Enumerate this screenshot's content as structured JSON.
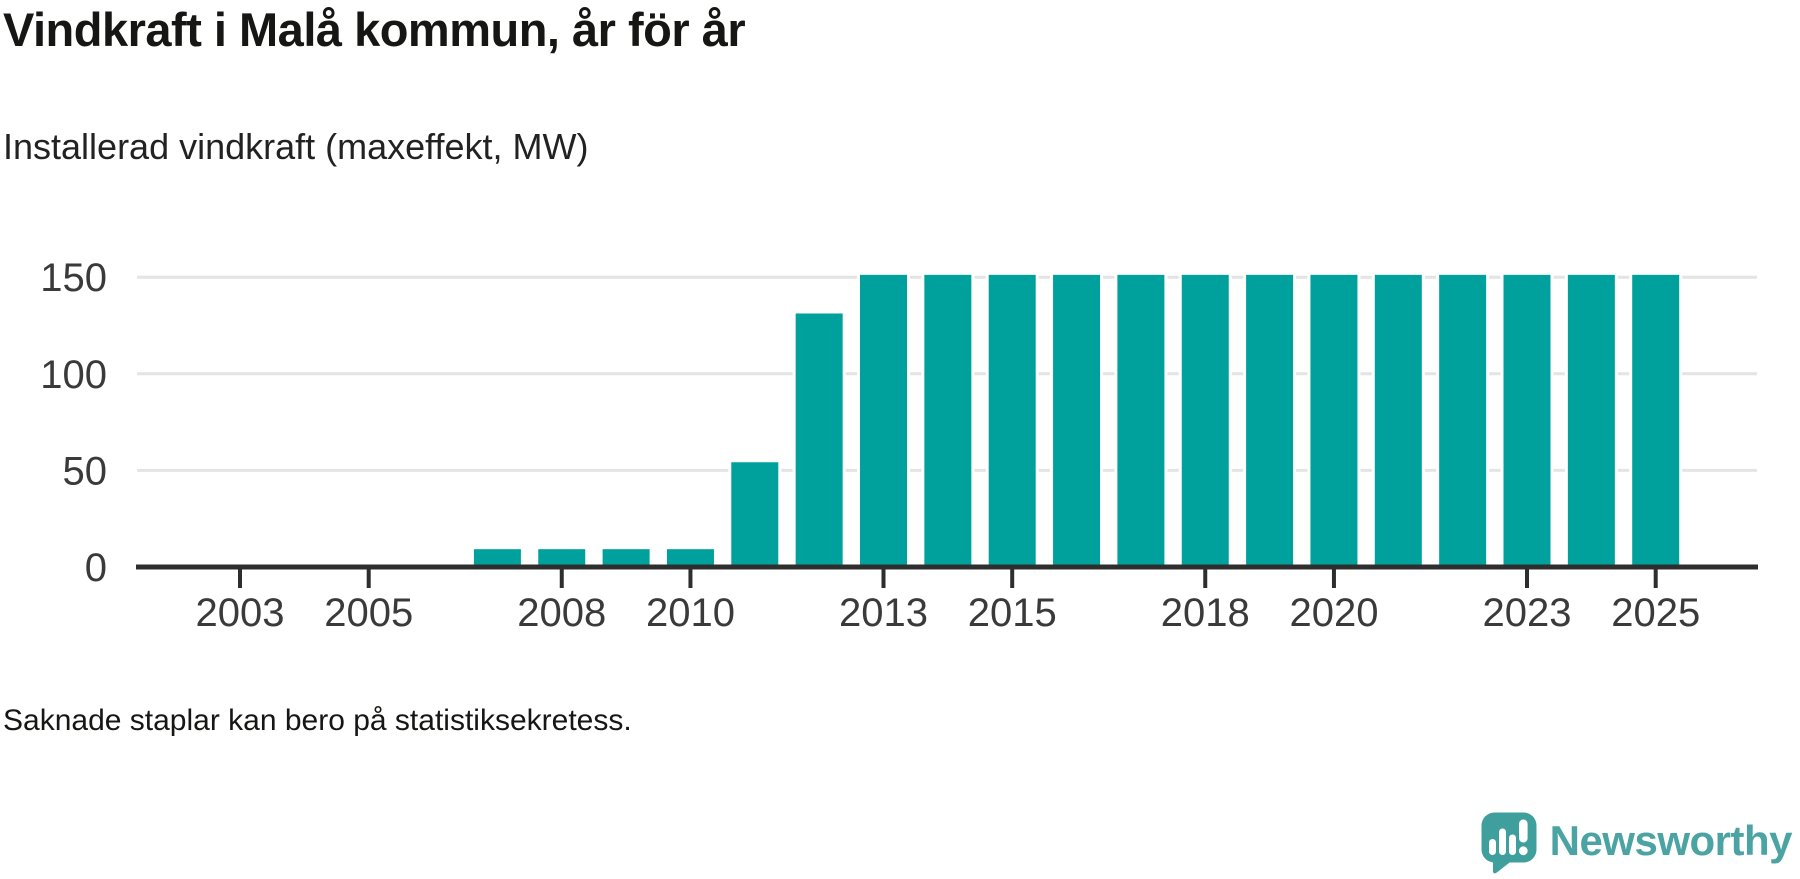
{
  "header": {
    "title": "Vindkraft i Malå kommun, år för år",
    "subtitle": "Installerad vindkraft (maxeffekt, MW)"
  },
  "footnote": "Saknade staplar kan bero på statistiksekretess.",
  "brand": {
    "name": "Newsworthy",
    "icon": "speech-bubble-with-bar-chart-and-exclamation",
    "text_color": "#4ba4a3",
    "bubble_color": "#3f9f9d"
  },
  "chart_data": {
    "type": "bar",
    "title": "Vindkraft i Malå kommun, år för år",
    "subtitle": "Installerad vindkraft (maxeffekt, MW)",
    "note": "Saknade staplar kan bero på statistiksekretess.",
    "unit": "MW",
    "xlabel": "",
    "ylabel": "",
    "legend": "none",
    "grid": "horizontal",
    "bar_color": "#00a19c",
    "axis_color": "#2e2e2e",
    "grid_color": "#e4e4e4",
    "label_color": "#3a3a3a",
    "x_domain": [
      2001.5,
      2026.5
    ],
    "x_tick_years": [
      2003,
      2005,
      2008,
      2010,
      2013,
      2015,
      2018,
      2020,
      2023,
      2025
    ],
    "ylim": [
      0,
      160
    ],
    "y_ticks": [
      0,
      50,
      100,
      150
    ],
    "series": [
      {
        "year": 2007,
        "value": 10
      },
      {
        "year": 2008,
        "value": 10
      },
      {
        "year": 2009,
        "value": 10
      },
      {
        "year": 2010,
        "value": 10
      },
      {
        "year": 2011,
        "value": 55
      },
      {
        "year": 2012,
        "value": 132
      },
      {
        "year": 2013,
        "value": 152
      },
      {
        "year": 2014,
        "value": 152
      },
      {
        "year": 2015,
        "value": 152
      },
      {
        "year": 2016,
        "value": 152
      },
      {
        "year": 2017,
        "value": 152
      },
      {
        "year": 2018,
        "value": 152
      },
      {
        "year": 2019,
        "value": 152
      },
      {
        "year": 2020,
        "value": 152
      },
      {
        "year": 2021,
        "value": 152
      },
      {
        "year": 2022,
        "value": 152
      },
      {
        "year": 2023,
        "value": 152
      },
      {
        "year": 2024,
        "value": 152
      },
      {
        "year": 2025,
        "value": 152
      }
    ]
  }
}
